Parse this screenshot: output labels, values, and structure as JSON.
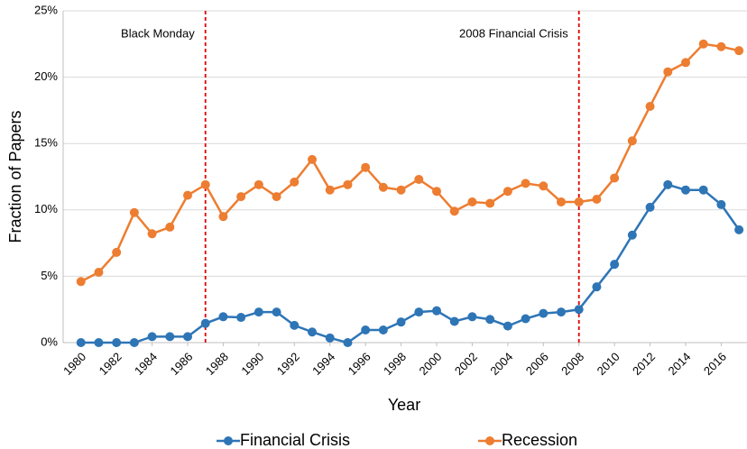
{
  "chart_data": {
    "type": "line",
    "x_label": "Year",
    "y_label": "Fraction of Papers",
    "x": [
      1980,
      1981,
      1982,
      1983,
      1984,
      1985,
      1986,
      1987,
      1988,
      1989,
      1990,
      1991,
      1992,
      1993,
      1994,
      1995,
      1996,
      1997,
      1998,
      1999,
      2000,
      2001,
      2002,
      2003,
      2004,
      2005,
      2006,
      2007,
      2008,
      2009,
      2010,
      2011,
      2012,
      2013,
      2014,
      2015,
      2016,
      2017
    ],
    "series": [
      {
        "name": "Financial Crisis",
        "color": "#2e75b6",
        "values": [
          0,
          0,
          0,
          0,
          0.45,
          0.45,
          0.45,
          1.45,
          1.95,
          1.9,
          2.3,
          2.3,
          1.3,
          0.8,
          0.35,
          0,
          0.95,
          0.95,
          1.55,
          2.3,
          2.4,
          1.6,
          1.95,
          1.75,
          1.25,
          1.8,
          2.2,
          2.3,
          2.5,
          4.2,
          5.9,
          8.1,
          10.2,
          11.9,
          11.5,
          11.5,
          10.4,
          8.5
        ]
      },
      {
        "name": "Recession",
        "color": "#ed7d31",
        "values": [
          4.6,
          5.3,
          6.8,
          9.8,
          8.2,
          8.7,
          11.1,
          11.9,
          9.5,
          11.0,
          11.9,
          11.0,
          12.1,
          13.8,
          11.5,
          11.9,
          13.2,
          11.7,
          11.5,
          12.3,
          11.4,
          9.9,
          10.6,
          10.5,
          11.4,
          12.0,
          11.8,
          10.6,
          10.6,
          10.8,
          12.4,
          15.2,
          17.8,
          20.4,
          21.1,
          22.5,
          22.3,
          22.0
        ]
      }
    ],
    "xlim": [
      1979,
      2017.45
    ],
    "xticks": [
      1980,
      1982,
      1984,
      1986,
      1988,
      1990,
      1992,
      1994,
      1996,
      1998,
      2000,
      2002,
      2004,
      2006,
      2008,
      2010,
      2012,
      2014,
      2016
    ],
    "ylim": [
      0,
      25
    ],
    "yticks": [
      {
        "value": 0,
        "label": "0%"
      },
      {
        "value": 5,
        "label": "5%"
      },
      {
        "value": 10,
        "label": "10%"
      },
      {
        "value": 15,
        "label": "15%"
      },
      {
        "value": 20,
        "label": "20%"
      },
      {
        "value": 25,
        "label": "25%"
      }
    ],
    "grid": true,
    "legend": "bottom",
    "annotations": [
      {
        "x": 1987,
        "text": "Black Monday",
        "color": "#e00000"
      },
      {
        "x": 2008,
        "text": "2008 Financial Crisis",
        "color": "#e00000"
      }
    ]
  }
}
